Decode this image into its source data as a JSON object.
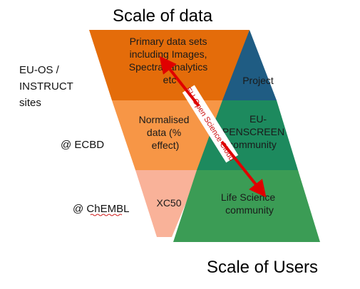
{
  "header": {
    "title": "Scale of data"
  },
  "footer": {
    "title": "Scale of Users"
  },
  "data_funnel": {
    "segments": [
      {
        "lines": [
          "Primary data sets",
          "including Images,",
          "Spectra, analytics",
          "etc"
        ],
        "color": "#E46C0A"
      },
      {
        "lines": [
          "Normalised",
          "data (%",
          "effect)"
        ],
        "color": "#F79646"
      },
      {
        "lines": [
          "XC50"
        ],
        "color": "#F9B299"
      }
    ]
  },
  "user_pyramid": {
    "segments": [
      {
        "lines": [
          "Project"
        ],
        "color": "#1F5C83"
      },
      {
        "lines": [
          "EU-",
          "OPENSCREEN",
          "community"
        ],
        "color": "#1D8A5E"
      },
      {
        "lines": [
          "Life Science",
          "community"
        ],
        "color": "#3B9C55"
      }
    ]
  },
  "side_labels": [
    {
      "lines": [
        "EU-OS /",
        "INSTRUCT",
        "sites"
      ]
    },
    {
      "lines": [
        "@ ECBD"
      ]
    },
    {
      "lines": [
        "@ ChEMBL"
      ]
    }
  ],
  "arrow": {
    "label": "EU-Open Science Cloud",
    "color": "#E00000"
  }
}
